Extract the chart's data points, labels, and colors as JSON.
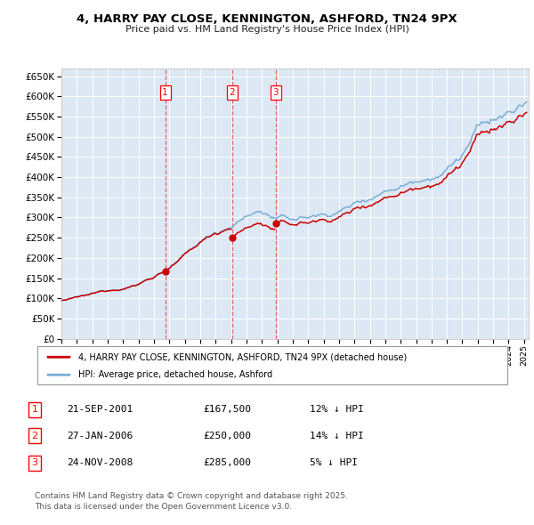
{
  "title": "4, HARRY PAY CLOSE, KENNINGTON, ASHFORD, TN24 9PX",
  "subtitle": "Price paid vs. HM Land Registry's House Price Index (HPI)",
  "ylim": [
    0,
    670000
  ],
  "yticks": [
    0,
    50000,
    100000,
    150000,
    200000,
    250000,
    300000,
    350000,
    400000,
    450000,
    500000,
    550000,
    600000,
    650000
  ],
  "xlim_start": 1995.0,
  "xlim_end": 2025.3,
  "bg_color": "#dde8f5",
  "grid_color": "#ffffff",
  "red_line_color": "#cc0000",
  "blue_line_color": "#7aadd4",
  "sale_dates": [
    2001.73,
    2006.07,
    2008.9
  ],
  "sale_prices": [
    167500,
    250000,
    285000
  ],
  "sale_labels": [
    "1",
    "2",
    "3"
  ],
  "sale_date_strs": [
    "21-SEP-2001",
    "27-JAN-2006",
    "24-NOV-2008"
  ],
  "sale_price_strs": [
    "£167,500",
    "£250,000",
    "£285,000"
  ],
  "sale_hpi_strs": [
    "12% ↓ HPI",
    "14% ↓ HPI",
    "5% ↓ HPI"
  ],
  "footer_text": "Contains HM Land Registry data © Crown copyright and database right 2025.\nThis data is licensed under the Open Government Licence v3.0.",
  "legend_red": "4, HARRY PAY CLOSE, KENNINGTON, ASHFORD, TN24 9PX (detached house)",
  "legend_blue": "HPI: Average price, detached house, Ashford"
}
